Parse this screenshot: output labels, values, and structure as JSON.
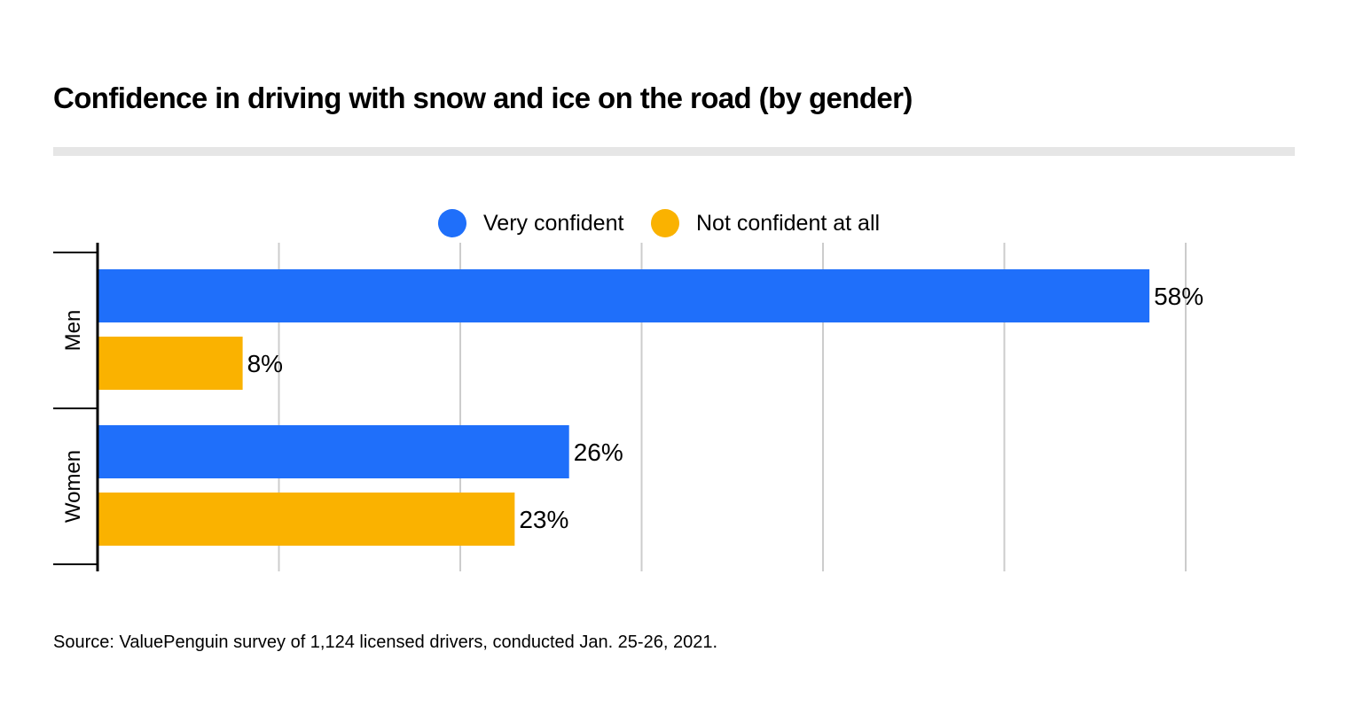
{
  "title": "Confidence in driving with snow and ice on the road (by gender)",
  "source": "Source: ValuePenguin survey of 1,124 licensed drivers, conducted Jan. 25-26, 2021.",
  "colors": {
    "very_confident": "#1f6ffa",
    "not_confident": "#fab200",
    "grid": "#cccccc",
    "axis": "#000000",
    "rule": "#e6e6e6"
  },
  "legend": [
    {
      "label": "Very confident",
      "color": "#1f6ffa"
    },
    {
      "label": "Not confident at all",
      "color": "#fab200"
    }
  ],
  "chart_data": {
    "type": "bar",
    "orientation": "horizontal",
    "title": "Confidence in driving with snow and ice on the road (by gender)",
    "categories": [
      "Men",
      "Women"
    ],
    "series": [
      {
        "name": "Very confident",
        "values": [
          58,
          26
        ],
        "labels": [
          "58%",
          "26%"
        ]
      },
      {
        "name": "Not confident at all",
        "values": [
          8,
          23
        ],
        "labels": [
          "8%",
          "23%"
        ]
      }
    ],
    "xlim": [
      0,
      60
    ],
    "grid": true,
    "xlabel": "",
    "ylabel": "",
    "legend_position": "top-center"
  }
}
